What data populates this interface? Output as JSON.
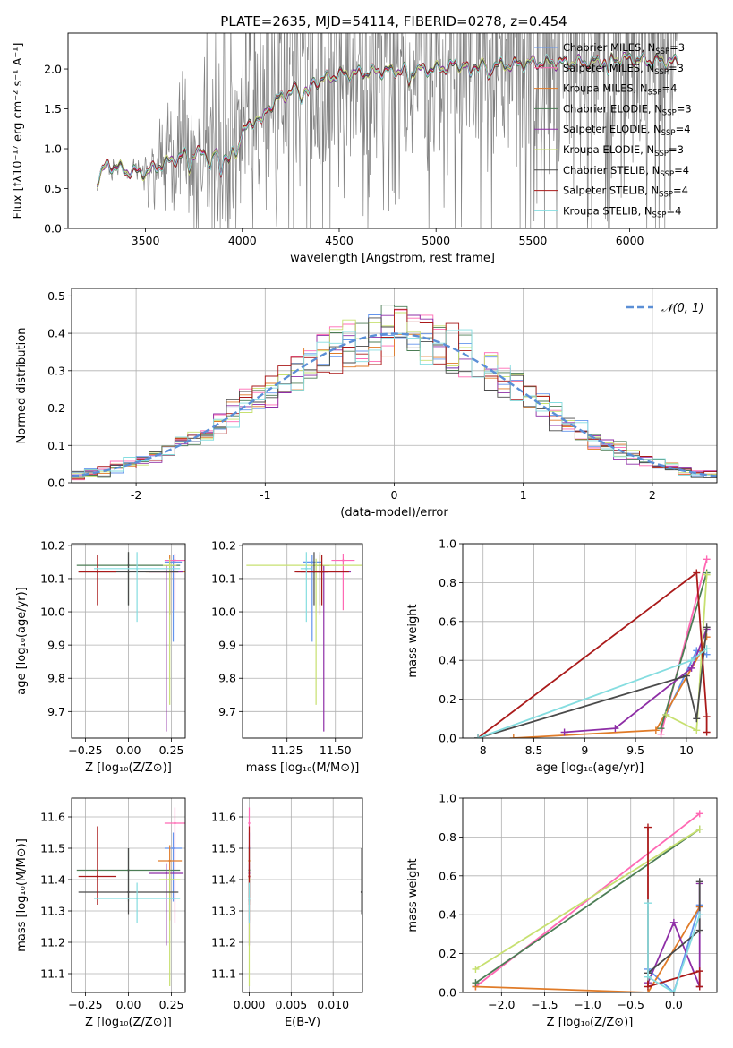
{
  "colors": {
    "Chabrier MILES": "#6495ed",
    "Salpeter MILES": "#ff69b4",
    "Kroupa MILES": "#e07b28",
    "Chabrier ELODIE": "#4c7d55",
    "Salpeter ELODIE": "#8e2ea6",
    "Kroupa ELODIE": "#c7e070",
    "Chabrier STELIB": "#4a4a4a",
    "Salpeter STELIB": "#aa1a1a",
    "Kroupa STELIB": "#85dde0",
    "data": "#808080",
    "normal": "#5b8fd6",
    "grid": "#b0b0b0"
  },
  "chart_data": [
    {
      "id": "spectrum",
      "type": "line",
      "title": "PLATE=2635, MJD=54114, FIBERID=0278, z=0.454",
      "xlabel": "wavelength [Angstrom, rest frame]",
      "ylabel": "Flux [fλ10⁻¹⁷ erg cm⁻² s⁻¹ A⁻¹]",
      "xlim": [
        3100,
        6450
      ],
      "ylim": [
        0,
        2.45
      ],
      "xticks": [
        3500,
        4000,
        4500,
        5000,
        5500,
        6000
      ],
      "yticks": [
        0.0,
        0.5,
        1.0,
        1.5,
        2.0
      ],
      "grid": false,
      "legend_position": "top-right",
      "continuum": {
        "x": [
          3250,
          3300,
          3350,
          3400,
          3500,
          3600,
          3700,
          3800,
          3900,
          3950,
          4000,
          4100,
          4200,
          4300,
          4400,
          4500,
          4600,
          4700,
          4800,
          4900,
          5000,
          5100,
          5200,
          5300,
          5400,
          5500,
          5600,
          5700,
          5800,
          5900,
          6000,
          6100,
          6200,
          6250
        ],
        "y": [
          0.6,
          0.8,
          0.77,
          0.72,
          0.7,
          0.82,
          0.92,
          0.95,
          0.9,
          1.0,
          1.2,
          1.45,
          1.65,
          1.78,
          1.86,
          1.93,
          1.95,
          1.97,
          1.98,
          1.99,
          2.0,
          2.05,
          2.05,
          2.05,
          2.05,
          2.08,
          2.08,
          2.08,
          2.08,
          2.12,
          2.13,
          2.1,
          2.1,
          2.08
        ]
      },
      "series": [
        {
          "name": "Chabrier MILES, N_SSP=3"
        },
        {
          "name": "Salpeter MILES, N_SSP=3"
        },
        {
          "name": "Kroupa MILES, N_SSP=4"
        },
        {
          "name": "Chabrier ELODIE, N_SSP=3"
        },
        {
          "name": "Salpeter ELODIE, N_SSP=4"
        },
        {
          "name": "Kroupa ELODIE, N_SSP=3"
        },
        {
          "name": "Chabrier STELIB, N_SSP=4"
        },
        {
          "name": "Salpeter STELIB, N_SSP=4"
        },
        {
          "name": "Kroupa STELIB, N_SSP=4"
        }
      ]
    },
    {
      "id": "residuals",
      "type": "line",
      "xlabel": "(data-model)/error",
      "ylabel": "Normed distribution",
      "xlim": [
        -2.5,
        2.5
      ],
      "ylim": [
        0,
        0.52
      ],
      "xticks": [
        -2,
        -1,
        0,
        1,
        2
      ],
      "yticks": [
        0.0,
        0.1,
        0.2,
        0.3,
        0.4,
        0.5
      ],
      "grid": true,
      "legend_position": "top-right",
      "normal_label": "𝒩(0, 1)",
      "bin_width": 0.1
    },
    {
      "id": "age-vs-Z",
      "type": "scatter",
      "xlabel": "Z [log₁₀(Z/Z⊙)]",
      "ylabel": "age [log₁₀(age/yr)]",
      "xlim": [
        -0.33,
        0.33
      ],
      "ylim": [
        9.62,
        10.205
      ],
      "xticks": [
        -0.25,
        0.0,
        0.25
      ],
      "xticklabels": [
        "−0.25",
        "0.00",
        "0.25"
      ],
      "yticks": [
        9.7,
        9.8,
        9.9,
        10.0,
        10.1,
        10.2
      ],
      "grid": true,
      "points": [
        {
          "model": "Chabrier MILES",
          "x": 0.26,
          "y": 10.15,
          "xerr": 0.05,
          "yerr": [
            0.24,
            0.02
          ]
        },
        {
          "model": "Salpeter MILES",
          "x": 0.27,
          "y": 10.155,
          "xerr": 0.06,
          "yerr": [
            0.15,
            0.02
          ]
        },
        {
          "model": "Kroupa MILES",
          "x": 0.24,
          "y": 10.12,
          "xerr": 0.14,
          "yerr": [
            0.13,
            0.05
          ]
        },
        {
          "model": "Chabrier ELODIE",
          "x": 0.0,
          "y": 10.14,
          "xerr": 0.3,
          "yerr": [
            0.12,
            0.04
          ]
        },
        {
          "model": "Salpeter ELODIE",
          "x": 0.22,
          "y": 10.12,
          "xerr": 0.1,
          "yerr": [
            0.48,
            0.02
          ]
        },
        {
          "model": "Kroupa ELODIE",
          "x": 0.24,
          "y": 10.14,
          "xerr": 0.04,
          "yerr": [
            0.42,
            0.02
          ]
        },
        {
          "model": "Chabrier STELIB",
          "x": 0.0,
          "y": 10.12,
          "xerr": 0.29,
          "yerr": [
            0.1,
            0.06
          ]
        },
        {
          "model": "Salpeter STELIB",
          "x": -0.18,
          "y": 10.12,
          "xerr": 0.11,
          "yerr": [
            0.1,
            0.05
          ]
        },
        {
          "model": "Kroupa STELIB",
          "x": 0.05,
          "y": 10.13,
          "xerr": 0.25,
          "yerr": [
            0.16,
            0.05
          ]
        }
      ]
    },
    {
      "id": "age-vs-mass",
      "type": "scatter",
      "xlabel": "mass [log₁₀(M/M⊙)]",
      "xlim": [
        11.02,
        11.64
      ],
      "ylim": [
        9.62,
        10.205
      ],
      "xticks": [
        11.25,
        11.5
      ],
      "xticklabels": [
        "11.25",
        "11.50"
      ],
      "yticks": [
        9.7,
        9.8,
        9.9,
        10.0,
        10.1,
        10.2
      ],
      "grid": true,
      "points": [
        {
          "model": "Chabrier MILES",
          "x": 11.38,
          "y": 10.15,
          "xerr": 0.05,
          "yerr": [
            0.24,
            0.02
          ]
        },
        {
          "model": "Salpeter MILES",
          "x": 11.54,
          "y": 10.155,
          "xerr": 0.06,
          "yerr": [
            0.15,
            0.02
          ]
        },
        {
          "model": "Kroupa MILES",
          "x": 11.42,
          "y": 10.12,
          "xerr": 0.04,
          "yerr": [
            0.13,
            0.05
          ]
        },
        {
          "model": "Chabrier ELODIE",
          "x": 11.42,
          "y": 10.14,
          "xerr": 0.05,
          "yerr": [
            0.12,
            0.04
          ]
        },
        {
          "model": "Salpeter ELODIE",
          "x": 11.44,
          "y": 10.12,
          "xerr": 0.14,
          "yerr": [
            0.48,
            0.02
          ]
        },
        {
          "model": "Kroupa ELODIE",
          "x": 11.4,
          "y": 10.14,
          "xerr": 0.36,
          "yerr": [
            0.42,
            0.02
          ]
        },
        {
          "model": "Chabrier STELIB",
          "x": 11.39,
          "y": 10.12,
          "xerr": 0.07,
          "yerr": [
            0.1,
            0.06
          ]
        },
        {
          "model": "Salpeter STELIB",
          "x": 11.43,
          "y": 10.12,
          "xerr": 0.14,
          "yerr": [
            0.1,
            0.05
          ]
        },
        {
          "model": "Kroupa STELIB",
          "x": 11.35,
          "y": 10.13,
          "xerr": 0.03,
          "yerr": [
            0.16,
            0.05
          ]
        }
      ]
    },
    {
      "id": "weight-vs-age",
      "type": "line",
      "xlabel": "age [log₁₀(age/yr)]",
      "ylabel": "mass weight",
      "xlim": [
        7.8,
        10.3
      ],
      "ylim": [
        0,
        1
      ],
      "xticks": [
        8.0,
        8.5,
        9.0,
        9.5,
        10.0
      ],
      "yticks": [
        0.0,
        0.2,
        0.4,
        0.6,
        0.8,
        1.0
      ],
      "grid": true,
      "series": [
        {
          "model": "Chabrier MILES",
          "x": [
            9.8,
            10.1,
            10.2
          ],
          "y": [
            0.12,
            0.45,
            0.43
          ]
        },
        {
          "model": "Salpeter MILES",
          "x": [
            9.75,
            10.2
          ],
          "y": [
            0.02,
            0.92
          ]
        },
        {
          "model": "Kroupa MILES",
          "x": [
            8.3,
            9.7,
            10.15,
            10.2
          ],
          "y": [
            0.0,
            0.04,
            0.45,
            0.52
          ]
        },
        {
          "model": "Chabrier ELODIE",
          "x": [
            9.75,
            10.2
          ],
          "y": [
            0.05,
            0.85
          ]
        },
        {
          "model": "Salpeter ELODIE",
          "x": [
            8.8,
            9.3,
            10.05,
            10.2
          ],
          "y": [
            0.03,
            0.05,
            0.36,
            0.56
          ]
        },
        {
          "model": "Kroupa ELODIE",
          "x": [
            9.8,
            10.1,
            10.2
          ],
          "y": [
            0.12,
            0.04,
            0.84
          ]
        },
        {
          "model": "Chabrier STELIB",
          "x": [
            7.95,
            10.0,
            10.1,
            10.2
          ],
          "y": [
            0.0,
            0.32,
            0.1,
            0.57
          ]
        },
        {
          "model": "Salpeter STELIB",
          "x": [
            7.95,
            10.1,
            10.2,
            10.2
          ],
          "y": [
            0.0,
            0.85,
            0.11,
            0.03
          ]
        },
        {
          "model": "Kroupa STELIB",
          "x": [
            7.95,
            10.05,
            10.2
          ],
          "y": [
            0.0,
            0.4,
            0.46
          ]
        }
      ]
    },
    {
      "id": "mass-vs-Z",
      "type": "scatter",
      "xlabel": "Z [log₁₀(Z/Z⊙)]",
      "ylabel": "mass [log₁₀(M/M⊙)]",
      "xlim": [
        -0.33,
        0.33
      ],
      "ylim": [
        11.04,
        11.66
      ],
      "xticks": [
        -0.25,
        0.0,
        0.25
      ],
      "xticklabels": [
        "−0.25",
        "0.00",
        "0.25"
      ],
      "yticks": [
        11.1,
        11.2,
        11.3,
        11.4,
        11.5,
        11.6
      ],
      "grid": true,
      "points": [
        {
          "model": "Chabrier MILES",
          "x": 0.26,
          "y": 11.5,
          "xerr": 0.05,
          "yerr": [
            0.17,
            0.05
          ]
        },
        {
          "model": "Salpeter MILES",
          "x": 0.27,
          "y": 11.58,
          "xerr": 0.06,
          "yerr": [
            0.32,
            0.05
          ]
        },
        {
          "model": "Kroupa MILES",
          "x": 0.24,
          "y": 11.46,
          "xerr": 0.07,
          "yerr": [
            0.19,
            0.05
          ]
        },
        {
          "model": "Chabrier ELODIE",
          "x": 0.0,
          "y": 11.43,
          "xerr": 0.3,
          "yerr": [
            0.1,
            0.07
          ]
        },
        {
          "model": "Salpeter ELODIE",
          "x": 0.22,
          "y": 11.42,
          "xerr": 0.1,
          "yerr": [
            0.23,
            0.03
          ]
        },
        {
          "model": "Kroupa ELODIE",
          "x": 0.24,
          "y": 11.4,
          "xerr": 0.06,
          "yerr": [
            0.34,
            0.03
          ]
        },
        {
          "model": "Chabrier STELIB",
          "x": 0.0,
          "y": 11.36,
          "xerr": 0.29,
          "yerr": [
            0.07,
            0.14
          ]
        },
        {
          "model": "Salpeter STELIB",
          "x": -0.18,
          "y": 11.41,
          "xerr": 0.11,
          "yerr": [
            0.09,
            0.16
          ]
        },
        {
          "model": "Kroupa STELIB",
          "x": 0.05,
          "y": 11.34,
          "xerr": 0.25,
          "yerr": [
            0.08,
            0.05
          ]
        }
      ]
    },
    {
      "id": "mass-vs-EBV",
      "type": "scatter",
      "xlabel": "E(B-V)",
      "xlim": [
        -0.0008,
        0.0135
      ],
      "ylim": [
        11.04,
        11.66
      ],
      "xticks": [
        0.0,
        0.005,
        0.01
      ],
      "xticklabels": [
        "0.000",
        "0.005",
        "0.010"
      ],
      "yticks": [
        11.1,
        11.2,
        11.3,
        11.4,
        11.5,
        11.6
      ],
      "grid": true,
      "points": [
        {
          "model": "Chabrier MILES",
          "x": 0.0,
          "y": 11.5,
          "yerr": [
            0.17,
            0.05
          ]
        },
        {
          "model": "Salpeter MILES",
          "x": 0.0,
          "y": 11.58,
          "yerr": [
            0.32,
            0.05
          ]
        },
        {
          "model": "Kroupa MILES",
          "x": 0.0,
          "y": 11.46,
          "yerr": [
            0.19,
            0.05
          ]
        },
        {
          "model": "Chabrier ELODIE",
          "x": 0.0,
          "y": 11.43,
          "yerr": [
            0.1,
            0.07
          ]
        },
        {
          "model": "Salpeter ELODIE",
          "x": 0.0,
          "y": 11.42,
          "yerr": [
            0.23,
            0.03
          ]
        },
        {
          "model": "Kroupa ELODIE",
          "x": 0.0,
          "y": 11.4,
          "yerr": [
            0.34,
            0.03
          ]
        },
        {
          "model": "Chabrier STELIB",
          "x": 0.0134,
          "y": 11.36,
          "yerr": [
            0.07,
            0.14
          ]
        },
        {
          "model": "Salpeter STELIB",
          "x": 0.0,
          "y": 11.41,
          "yerr": [
            0.09,
            0.16
          ]
        },
        {
          "model": "Kroupa STELIB",
          "x": 0.0,
          "y": 11.34,
          "yerr": [
            0.08,
            0.05
          ]
        }
      ]
    },
    {
      "id": "weight-vs-Z",
      "type": "line",
      "xlabel": "Z [log₁₀(Z/Z⊙)]",
      "ylabel": "mass weight",
      "xlim": [
        -2.45,
        0.5
      ],
      "ylim": [
        0,
        1
      ],
      "xticks": [
        -2.0,
        -1.5,
        -1.0,
        -0.5,
        0.0
      ],
      "xticklabels": [
        "−2.0",
        "−1.5",
        "−1.0",
        "−0.5",
        "0.0"
      ],
      "yticks": [
        0.0,
        0.2,
        0.4,
        0.6,
        0.8,
        1.0
      ],
      "grid": true,
      "series": [
        {
          "model": "Chabrier MILES",
          "x": [
            -0.3,
            0.0,
            0.3
          ],
          "y": [
            0.12,
            0.0,
            0.45
          ]
        },
        {
          "model": "Salpeter MILES",
          "x": [
            -2.3,
            0.3
          ],
          "y": [
            0.03,
            0.92
          ]
        },
        {
          "model": "Kroupa MILES",
          "x": [
            -2.3,
            -0.3,
            0.3
          ],
          "y": [
            0.03,
            0.0,
            0.44
          ]
        },
        {
          "model": "Chabrier ELODIE",
          "x": [
            -2.3,
            0.3
          ],
          "y": [
            0.05,
            0.84
          ]
        },
        {
          "model": "Salpeter ELODIE",
          "x": [
            -0.3,
            0.0,
            0.3,
            0.3
          ],
          "y": [
            0.05,
            0.36,
            0.03,
            0.56
          ]
        },
        {
          "model": "Kroupa ELODIE",
          "x": [
            -2.3,
            0.3
          ],
          "y": [
            0.12,
            0.84
          ]
        },
        {
          "model": "Chabrier STELIB",
          "x": [
            -0.3,
            0.3,
            0.3
          ],
          "y": [
            0.1,
            0.32,
            0.57
          ]
        },
        {
          "model": "Salpeter STELIB",
          "x": [
            -0.3,
            -0.3,
            0.3,
            0.3
          ],
          "y": [
            0.85,
            0.03,
            0.11,
            0.03
          ]
        },
        {
          "model": "Kroupa STELIB",
          "x": [
            -0.3,
            -0.3,
            0.0,
            0.3
          ],
          "y": [
            0.46,
            0.08,
            0.0,
            0.4
          ]
        }
      ]
    }
  ]
}
